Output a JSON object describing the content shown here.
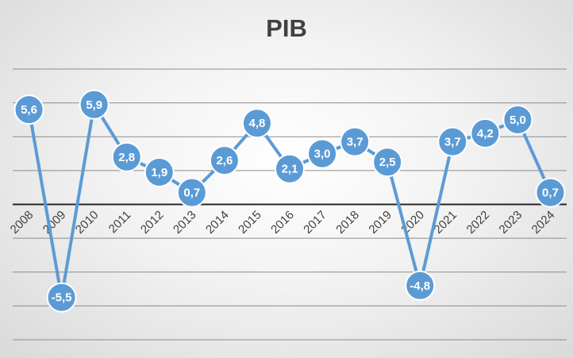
{
  "chart_data": {
    "type": "line",
    "title": "PIB",
    "xlabel": "",
    "ylabel": "",
    "categories": [
      "2008",
      "2009",
      "2010",
      "2011",
      "2012",
      "2013",
      "2014",
      "2015",
      "2016",
      "2017",
      "2018",
      "2019",
      "2020",
      "2021",
      "2022",
      "2023",
      "2024"
    ],
    "series": [
      {
        "values": [
          5.6,
          -5.5,
          5.9,
          2.8,
          1.9,
          0.7,
          2.6,
          4.8,
          2.1,
          3.0,
          3.7,
          2.5,
          -4.8,
          3.7,
          4.2,
          5.0,
          0.7
        ],
        "labels": [
          "5,6",
          "-5,5",
          "5,9",
          "2,8",
          "1,9",
          "0,7",
          "2,6",
          "4,8",
          "2,1",
          "3,0",
          "3,7",
          "2,5",
          "-4,8",
          "3,7",
          "4,2",
          "5,0",
          "0,7"
        ]
      }
    ],
    "ylim": [
      -8,
      8
    ],
    "grid": true,
    "legend": "none",
    "colors": {
      "series": "#5b9bd5",
      "marker": "#5b9bd5",
      "zero_line": "#262626",
      "grid": "#8c8c8c",
      "title": "#404040"
    }
  }
}
